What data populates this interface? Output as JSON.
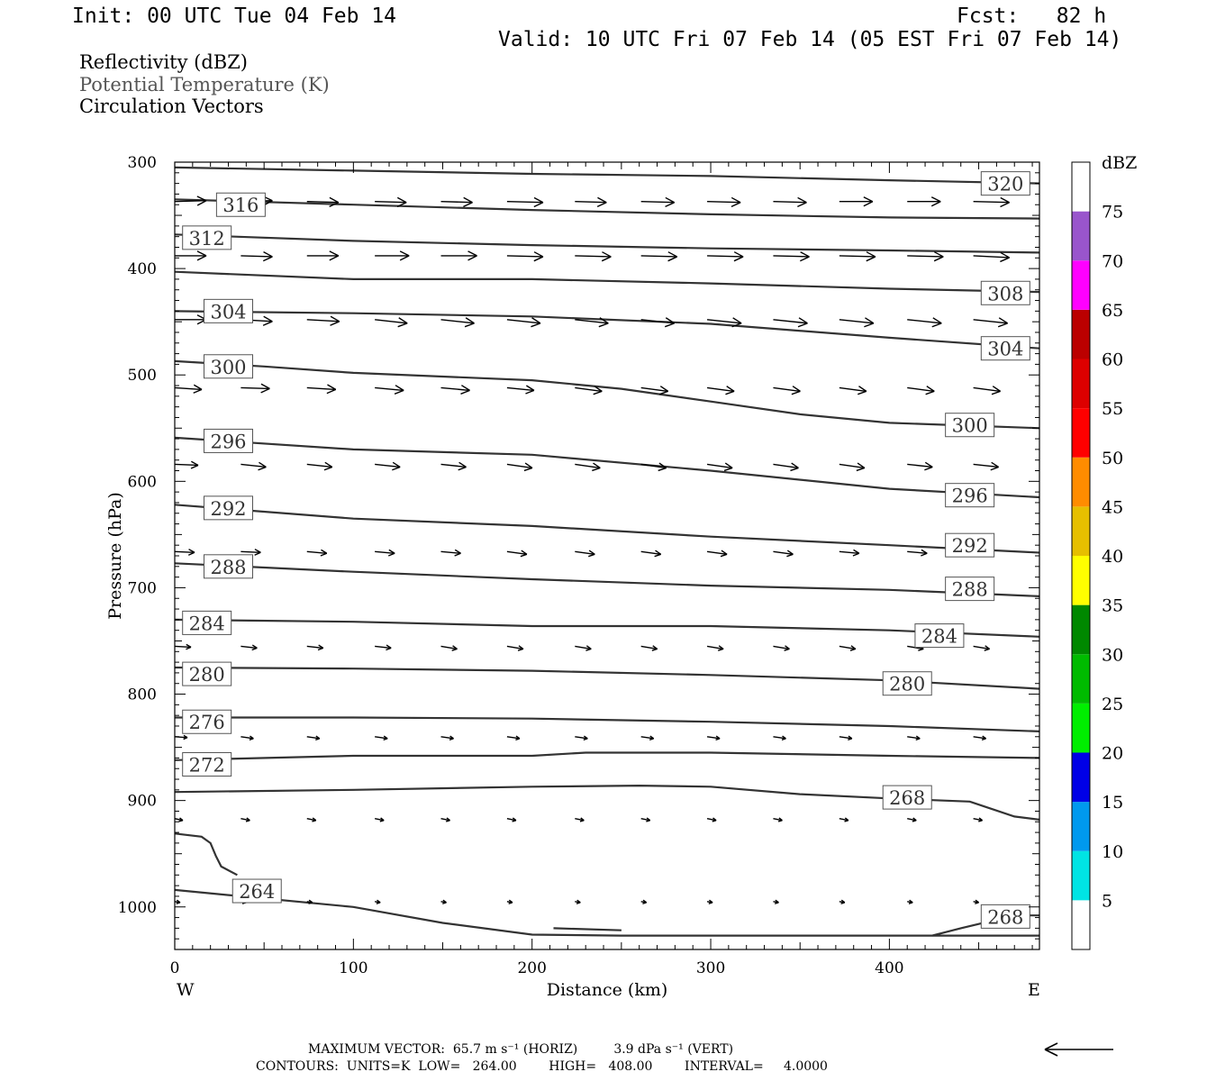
{
  "header": {
    "init": "Init: 00 UTC Tue 04 Feb 14",
    "fcst": "Fcst:   82 h",
    "valid": "Valid: 10 UTC Fri 07 Feb 14 (05 EST Fri 07 Feb 14)",
    "field1": "Reflectivity (dBZ)",
    "field2": "Potential Temperature (K)",
    "field3": "Circulation Vectors"
  },
  "footer": {
    "max_vector": "MAXIMUM VECTOR:  65.7 m s⁻¹ (HORIZ)         3.9 dPa s⁻¹ (VERT)",
    "contours": "CONTOURS:  UNITS=K  LOW=   264.00        HIGH=   408.00        INTERVAL=     4.0000"
  },
  "chart_data": {
    "type": "cross-section",
    "xlabel": "Distance (km)",
    "ylabel": "Pressure (hPa)",
    "xlim": [
      0,
      484
    ],
    "ylim": [
      300,
      1040
    ],
    "x_ticks": [
      0,
      100,
      200,
      300,
      400
    ],
    "y_ticks": [
      300,
      400,
      500,
      600,
      700,
      800,
      900,
      1000
    ],
    "x_end_labels": {
      "left": "W",
      "right": "E"
    },
    "colorbar": {
      "title": "dBZ",
      "labels": [
        5,
        10,
        15,
        20,
        25,
        30,
        35,
        40,
        45,
        50,
        55,
        60,
        65,
        70,
        75
      ],
      "bins": [
        {
          "from": 0,
          "to": 5,
          "color": "#ffffff"
        },
        {
          "from": 5,
          "to": 10,
          "color": "#00e4e4"
        },
        {
          "from": 10,
          "to": 15,
          "color": "#0099ee"
        },
        {
          "from": 15,
          "to": 20,
          "color": "#0000e6"
        },
        {
          "from": 20,
          "to": 25,
          "color": "#00ee00"
        },
        {
          "from": 25,
          "to": 30,
          "color": "#00bb00"
        },
        {
          "from": 30,
          "to": 35,
          "color": "#008800"
        },
        {
          "from": 35,
          "to": 40,
          "color": "#ffff00"
        },
        {
          "from": 40,
          "to": 45,
          "color": "#e6bf00"
        },
        {
          "from": 45,
          "to": 50,
          "color": "#ff8c00"
        },
        {
          "from": 50,
          "to": 55,
          "color": "#ff0000"
        },
        {
          "from": 55,
          "to": 60,
          "color": "#dd0000"
        },
        {
          "from": 60,
          "to": 65,
          "color": "#bb0000"
        },
        {
          "from": 65,
          "to": 70,
          "color": "#ff00ff"
        },
        {
          "from": 70,
          "to": 75,
          "color": "#9955cc"
        },
        {
          "from": 75,
          "to": 80,
          "color": "#ffffff"
        }
      ]
    },
    "isentropes": [
      {
        "theta": 320,
        "pts": [
          [
            0,
            305
          ],
          [
            100,
            308
          ],
          [
            200,
            311
          ],
          [
            300,
            313
          ],
          [
            400,
            317
          ],
          [
            484,
            320
          ]
        ],
        "labels": [
          {
            "x": 465,
            "p": 320
          }
        ]
      },
      {
        "theta": 316,
        "pts": [
          [
            0,
            335
          ],
          [
            100,
            340
          ],
          [
            200,
            345
          ],
          [
            300,
            349
          ],
          [
            400,
            352
          ],
          [
            484,
            353
          ]
        ],
        "labels": [
          {
            "x": 37,
            "p": 340
          }
        ]
      },
      {
        "theta": 312,
        "pts": [
          [
            0,
            368
          ],
          [
            100,
            374
          ],
          [
            200,
            378
          ],
          [
            300,
            381
          ],
          [
            400,
            383
          ],
          [
            484,
            385
          ]
        ],
        "labels": [
          {
            "x": 18,
            "p": 371
          }
        ]
      },
      {
        "theta": 308,
        "pts": [
          [
            0,
            403
          ],
          [
            100,
            410
          ],
          [
            200,
            410
          ],
          [
            300,
            414
          ],
          [
            400,
            419
          ],
          [
            484,
            422
          ]
        ],
        "labels": [
          {
            "x": 465,
            "p": 423
          }
        ]
      },
      {
        "theta": 304,
        "pts": [
          [
            0,
            440
          ],
          [
            100,
            442
          ],
          [
            200,
            445
          ],
          [
            300,
            452
          ],
          [
            400,
            465
          ],
          [
            484,
            475
          ]
        ],
        "labels": [
          {
            "x": 30,
            "p": 440
          },
          {
            "x": 465,
            "p": 475
          }
        ]
      },
      {
        "theta": 300,
        "pts": [
          [
            0,
            487
          ],
          [
            50,
            492
          ],
          [
            100,
            498
          ],
          [
            200,
            505
          ],
          [
            250,
            513
          ],
          [
            300,
            525
          ],
          [
            350,
            537
          ],
          [
            400,
            545
          ],
          [
            484,
            550
          ]
        ],
        "labels": [
          {
            "x": 30,
            "p": 492
          },
          {
            "x": 445,
            "p": 547
          }
        ]
      },
      {
        "theta": 296,
        "pts": [
          [
            0,
            559
          ],
          [
            100,
            570
          ],
          [
            200,
            575
          ],
          [
            300,
            590
          ],
          [
            400,
            607
          ],
          [
            484,
            615
          ]
        ],
        "labels": [
          {
            "x": 30,
            "p": 562
          },
          {
            "x": 445,
            "p": 613
          }
        ]
      },
      {
        "theta": 292,
        "pts": [
          [
            0,
            622
          ],
          [
            100,
            635
          ],
          [
            200,
            642
          ],
          [
            300,
            652
          ],
          [
            400,
            660
          ],
          [
            484,
            667
          ]
        ],
        "labels": [
          {
            "x": 30,
            "p": 625
          },
          {
            "x": 445,
            "p": 660
          }
        ]
      },
      {
        "theta": 288,
        "pts": [
          [
            0,
            677
          ],
          [
            100,
            685
          ],
          [
            200,
            692
          ],
          [
            300,
            698
          ],
          [
            400,
            702
          ],
          [
            484,
            708
          ]
        ],
        "labels": [
          {
            "x": 30,
            "p": 680
          },
          {
            "x": 445,
            "p": 701
          }
        ]
      },
      {
        "theta": 284,
        "pts": [
          [
            0,
            730
          ],
          [
            100,
            732
          ],
          [
            200,
            736
          ],
          [
            300,
            736
          ],
          [
            400,
            740
          ],
          [
            484,
            746
          ]
        ],
        "labels": [
          {
            "x": 18,
            "p": 733
          },
          {
            "x": 428,
            "p": 745
          }
        ]
      },
      {
        "theta": 280,
        "pts": [
          [
            0,
            775
          ],
          [
            100,
            776
          ],
          [
            200,
            778
          ],
          [
            300,
            782
          ],
          [
            400,
            787
          ],
          [
            484,
            795
          ]
        ],
        "labels": [
          {
            "x": 18,
            "p": 781
          },
          {
            "x": 410,
            "p": 790
          }
        ]
      },
      {
        "theta": 276,
        "pts": [
          [
            0,
            822
          ],
          [
            100,
            822
          ],
          [
            200,
            823
          ],
          [
            300,
            826
          ],
          [
            400,
            830
          ],
          [
            484,
            835
          ]
        ],
        "labels": [
          {
            "x": 18,
            "p": 826
          }
        ]
      },
      {
        "theta": 272,
        "pts": [
          [
            0,
            862
          ],
          [
            100,
            858
          ],
          [
            200,
            858
          ],
          [
            230,
            855
          ],
          [
            300,
            855
          ],
          [
            400,
            858
          ],
          [
            484,
            860
          ]
        ],
        "labels": [
          {
            "x": 18,
            "p": 866
          }
        ]
      },
      {
        "theta": 268,
        "pts": [
          [
            0,
            892
          ],
          [
            100,
            890
          ],
          [
            200,
            887
          ],
          [
            260,
            886
          ],
          [
            300,
            887
          ],
          [
            350,
            894
          ],
          [
            400,
            898
          ],
          [
            445,
            901
          ],
          [
            470,
            915
          ],
          [
            484,
            918
          ]
        ],
        "labels": [
          {
            "x": 410,
            "p": 897
          },
          {
            "x": 465,
            "p": 1009
          }
        ]
      },
      {
        "theta": 264,
        "pts": [
          [
            0,
            984
          ],
          [
            100,
            1000
          ],
          [
            150,
            1015
          ],
          [
            200,
            1026
          ],
          [
            250,
            1027
          ],
          [
            300,
            1027
          ],
          [
            400,
            1027
          ],
          [
            484,
            1027
          ]
        ],
        "labels": [
          {
            "x": 46,
            "p": 985
          }
        ]
      }
    ],
    "extra_contours": [
      {
        "pts": [
          [
            0,
            931
          ],
          [
            15,
            934
          ],
          [
            20,
            940
          ],
          [
            23,
            952
          ],
          [
            26,
            962
          ],
          [
            35,
            970
          ]
        ]
      },
      {
        "pts": [
          [
            424,
            1027
          ],
          [
            440,
            1020
          ],
          [
            455,
            1014
          ],
          [
            475,
            1008
          ],
          [
            484,
            1008
          ]
        ]
      },
      {
        "pts": [
          [
            212,
            1020
          ],
          [
            250,
            1022
          ]
        ]
      }
    ],
    "vectors": [
      {
        "p": 337,
        "x": [
          0,
          37,
          74,
          112,
          149,
          186,
          224,
          261,
          298,
          335,
          372,
          410,
          447
        ],
        "dx": [
          35,
          35,
          35,
          35,
          35,
          40,
          35,
          37,
          37,
          37,
          37,
          37,
          40
        ],
        "dy": [
          -1,
          -1,
          1,
          1,
          1,
          1,
          1,
          1,
          1,
          1,
          0,
          0,
          1
        ]
      },
      {
        "p": 388,
        "x": [
          0,
          37,
          74,
          112,
          149,
          186,
          224,
          261,
          298,
          335,
          372,
          410,
          447
        ],
        "dx": [
          35,
          35,
          35,
          38,
          40,
          40,
          40,
          40,
          40,
          40,
          40,
          40,
          40
        ],
        "dy": [
          0,
          1,
          0,
          0,
          0,
          1,
          1,
          1,
          1,
          1,
          1,
          1,
          2
        ]
      },
      {
        "p": 448,
        "x": [
          0,
          37,
          74,
          112,
          149,
          186,
          224,
          261,
          298,
          335,
          372,
          410,
          447
        ],
        "dx": [
          35,
          35,
          36,
          36,
          37,
          37,
          37,
          37,
          38,
          38,
          38,
          38,
          38
        ],
        "dy": [
          0,
          2,
          2,
          4,
          4,
          4,
          4,
          4,
          4,
          4,
          4,
          4,
          4
        ]
      },
      {
        "p": 512,
        "x": [
          0,
          37,
          74,
          112,
          149,
          186,
          224,
          261,
          298,
          335,
          372,
          410,
          447
        ],
        "dx": [
          30,
          32,
          32,
          32,
          32,
          30,
          30,
          30,
          30,
          30,
          30,
          30,
          30
        ],
        "dy": [
          2,
          1,
          2,
          3,
          3,
          3,
          4,
          4,
          4,
          4,
          4,
          4,
          4
        ]
      },
      {
        "p": 584,
        "x": [
          0,
          37,
          74,
          112,
          149,
          186,
          224,
          261,
          298,
          335,
          372,
          410,
          447
        ],
        "dx": [
          26,
          28,
          28,
          28,
          28,
          28,
          28,
          28,
          28,
          28,
          28,
          28,
          28
        ],
        "dy": [
          1,
          3,
          3,
          3,
          3,
          4,
          4,
          4,
          4,
          4,
          4,
          3,
          3
        ]
      },
      {
        "p": 666,
        "x": [
          0,
          37,
          74,
          112,
          149,
          186,
          224,
          261,
          298,
          335,
          372,
          410,
          447
        ],
        "dx": [
          22,
          22,
          22,
          22,
          22,
          22,
          22,
          22,
          22,
          22,
          22,
          22,
          22
        ],
        "dy": [
          1,
          1,
          2,
          2,
          2,
          3,
          3,
          3,
          3,
          3,
          2,
          2,
          2
        ]
      },
      {
        "p": 755,
        "x": [
          0,
          37,
          74,
          112,
          149,
          186,
          224,
          261,
          298,
          335,
          372,
          410,
          447
        ],
        "dx": [
          18,
          18,
          18,
          18,
          18,
          18,
          18,
          18,
          18,
          18,
          18,
          18,
          18
        ],
        "dy": [
          1,
          2,
          2,
          2,
          3,
          3,
          3,
          3,
          3,
          3,
          3,
          3,
          3
        ]
      },
      {
        "p": 840,
        "x": [
          0,
          37,
          74,
          112,
          149,
          186,
          224,
          261,
          298,
          335,
          372,
          410,
          447
        ],
        "dx": [
          14,
          14,
          14,
          14,
          14,
          14,
          14,
          14,
          14,
          14,
          14,
          14,
          14
        ],
        "dy": [
          1,
          2,
          2,
          2,
          2,
          2,
          2,
          2,
          2,
          2,
          2,
          2,
          2
        ]
      },
      {
        "p": 917,
        "x": [
          0,
          37,
          74,
          112,
          149,
          186,
          224,
          261,
          298,
          335,
          372,
          410,
          447
        ],
        "dx": [
          9,
          10,
          10,
          10,
          10,
          10,
          10,
          10,
          10,
          10,
          10,
          10,
          10
        ],
        "dy": [
          2,
          2,
          2,
          2,
          2,
          2,
          2,
          2,
          2,
          2,
          2,
          2,
          2
        ]
      },
      {
        "p": 995,
        "x": [
          0,
          37,
          74,
          112,
          149,
          186,
          224,
          261,
          298,
          335,
          372,
          410,
          447
        ],
        "dx": [
          6,
          6,
          6,
          6,
          6,
          6,
          6,
          6,
          6,
          6,
          6,
          6,
          6
        ],
        "dy": [
          1,
          1,
          1,
          1,
          1,
          1,
          1,
          1,
          1,
          1,
          1,
          1,
          1
        ]
      }
    ]
  }
}
